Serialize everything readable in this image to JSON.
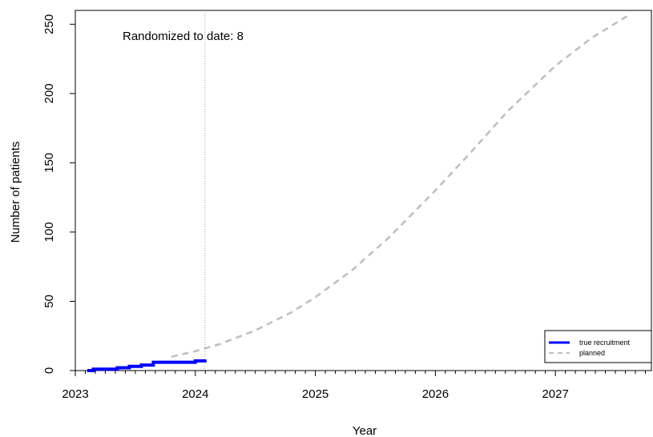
{
  "chart_data": {
    "type": "line",
    "xlabel": "Year",
    "ylabel": "Number of patients",
    "annotation": "Randomized to date: 8",
    "xlim": [
      2023.0,
      2027.8
    ],
    "ylim": [
      0,
      260
    ],
    "x_ticks": [
      2023,
      2024,
      2025,
      2026,
      2027
    ],
    "y_ticks": [
      0,
      50,
      100,
      150,
      200,
      250
    ],
    "cutoff_date": 2024.08,
    "legend": {
      "position": "bottom-right",
      "entries": [
        "true recruitment",
        "planned"
      ]
    },
    "colors": {
      "true_recruitment": "#0000ff",
      "planned": "#bebebe",
      "cutoff_line": "#a0a0a0"
    },
    "series": [
      {
        "name": "true recruitment",
        "style": "step",
        "x": [
          2023.1,
          2023.15,
          2023.35,
          2023.45,
          2023.55,
          2023.65,
          2023.9,
          2024.0,
          2024.08
        ],
        "y": [
          0,
          1,
          2,
          3,
          4,
          6,
          6,
          7,
          8
        ]
      },
      {
        "name": "planned",
        "style": "dashed",
        "x": [
          2023.8,
          2024.0,
          2024.2,
          2024.5,
          2024.8,
          2025.0,
          2025.3,
          2025.6,
          2026.0,
          2026.3,
          2026.6,
          2027.0,
          2027.3,
          2027.6
        ],
        "y": [
          10,
          14,
          19,
          29,
          42,
          53,
          72,
          95,
          130,
          158,
          187,
          220,
          240,
          256
        ]
      }
    ]
  }
}
